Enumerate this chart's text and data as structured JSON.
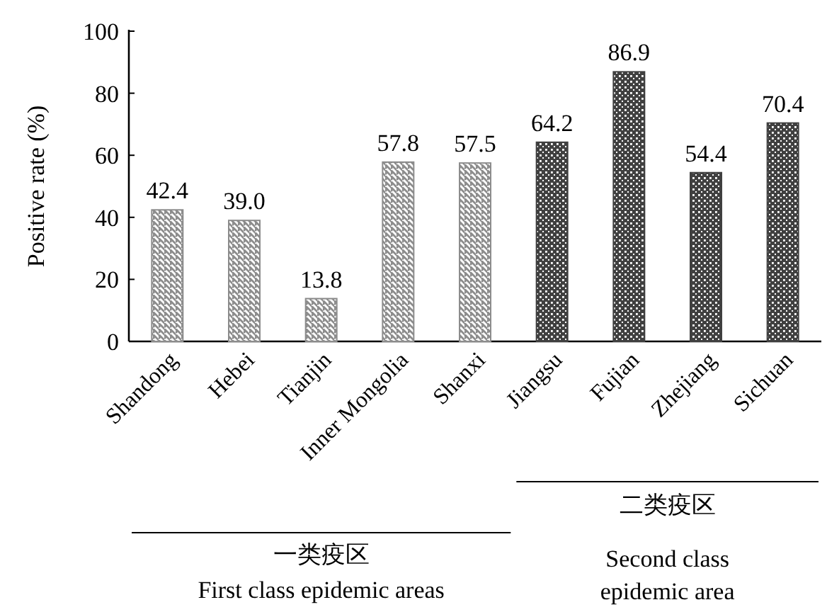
{
  "chart_data": {
    "type": "bar",
    "ylabel": "Positive rate (%)",
    "categories": [
      "Shandong",
      "Hebei",
      "Tianjin",
      "Inner Mongolia",
      "Shanxi",
      "Jiangsu",
      "Fujian",
      "Zhejiang",
      "Sichuan"
    ],
    "values": [
      42.4,
      39.0,
      13.8,
      57.8,
      57.5,
      64.2,
      86.9,
      54.4,
      70.4
    ],
    "colors": [
      "#8c8c8c",
      "#8c8c8c",
      "#8c8c8c",
      "#8c8c8c",
      "#8c8c8c",
      "#404040",
      "#404040",
      "#404040",
      "#404040"
    ],
    "ylim": [
      0,
      100
    ],
    "yticks": [
      0,
      20,
      40,
      60,
      80,
      100
    ],
    "value_labels": [
      "42.4",
      "39.0",
      "13.8",
      "57.8",
      "57.5",
      "64.2",
      "86.9",
      "54.4",
      "70.4"
    ],
    "grid": false,
    "annotations": [
      "一类疫区",
      "First class epidemic areas",
      "二类疫区",
      "Second class epidemic area"
    ]
  }
}
